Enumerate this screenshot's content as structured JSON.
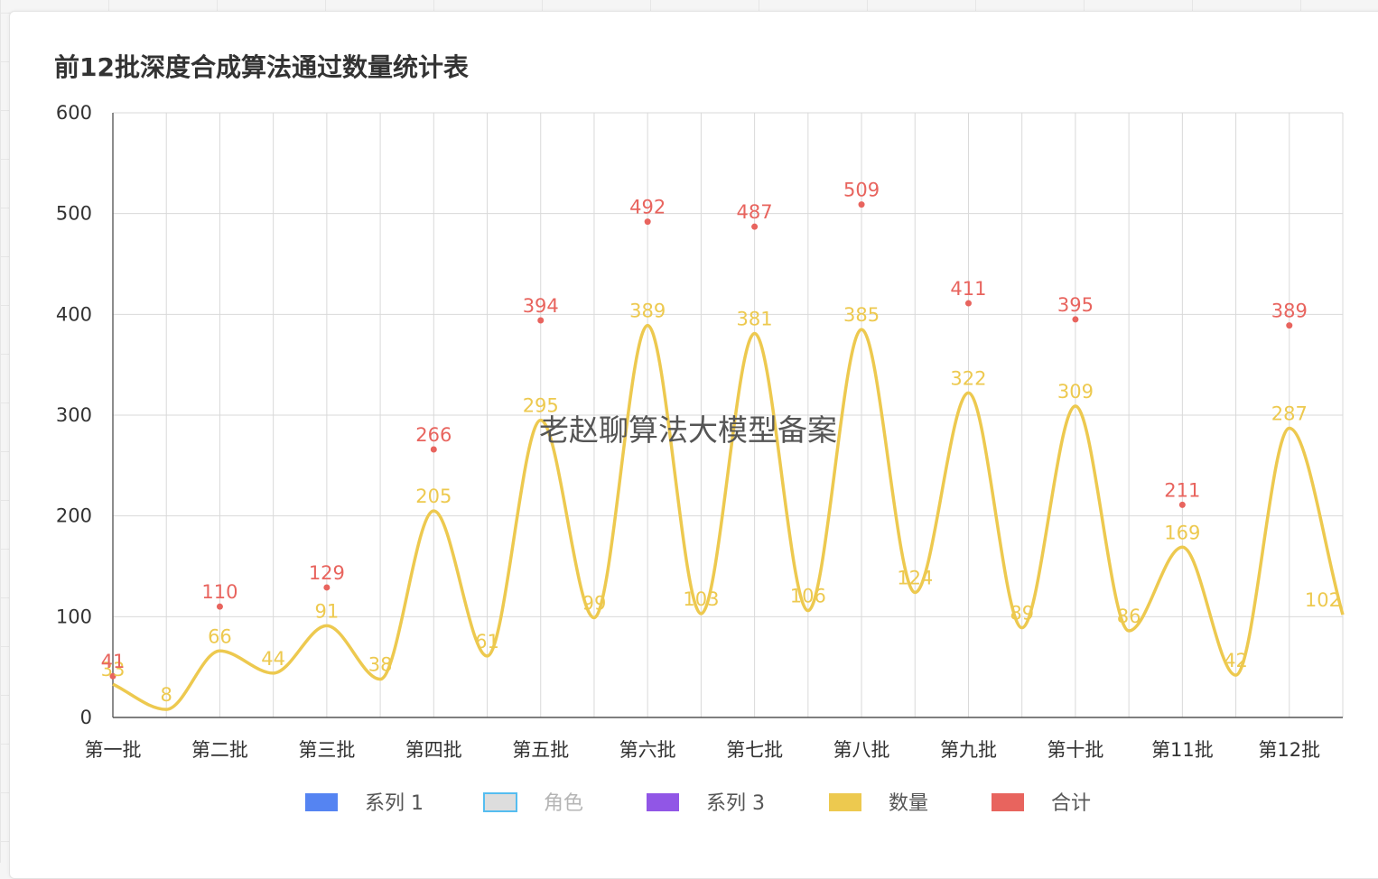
{
  "watermark": "老赵聊算法大模型备案",
  "chart_data": {
    "type": "line",
    "title": "前12批深度合成算法通过数量统计表",
    "xlabel": "",
    "ylabel": "",
    "ylim": [
      0,
      600
    ],
    "yticks": [
      "0",
      "100",
      "200",
      "300",
      "400",
      "500",
      "600"
    ],
    "categories": [
      "第一批",
      "第二批",
      "第三批",
      "第四批",
      "第五批",
      "第六批",
      "第七批",
      "第八批",
      "第九批",
      "第十批",
      "第11批",
      "第12批"
    ],
    "grid": true,
    "legend_position": "bottom",
    "series": [
      {
        "name": "数量",
        "color": "#edc94f",
        "style": "smooth-line",
        "x": [
          0,
          0.5,
          1,
          1.5,
          2,
          2.5,
          3,
          3.5,
          4,
          4.5,
          5,
          5.5,
          6,
          6.5,
          7,
          7.5,
          8,
          8.5,
          9,
          9.5,
          10,
          10.5,
          11,
          11.5
        ],
        "values": [
          33,
          8,
          66,
          44,
          91,
          38,
          205,
          61,
          295,
          99,
          389,
          103,
          381,
          106,
          385,
          124,
          322,
          89,
          309,
          86,
          169,
          42,
          287,
          102
        ]
      },
      {
        "name": "合计",
        "color": "#e8645e",
        "style": "points",
        "x": [
          0,
          1,
          2,
          3,
          4,
          5,
          6,
          7,
          8,
          9,
          10,
          11
        ],
        "values": [
          41,
          110,
          129,
          266,
          394,
          492,
          487,
          509,
          411,
          395,
          211,
          389
        ]
      }
    ],
    "legend": [
      {
        "name": "系列 1",
        "color": "#5584f2",
        "active": true
      },
      {
        "name": "角色",
        "color": "#dddddd",
        "border": "#55bdf0",
        "active": false
      },
      {
        "name": "系列 3",
        "color": "#9156e6",
        "active": true
      },
      {
        "name": "数量",
        "color": "#edc94f",
        "active": true
      },
      {
        "name": "合计",
        "color": "#e8645e",
        "active": true
      }
    ]
  }
}
